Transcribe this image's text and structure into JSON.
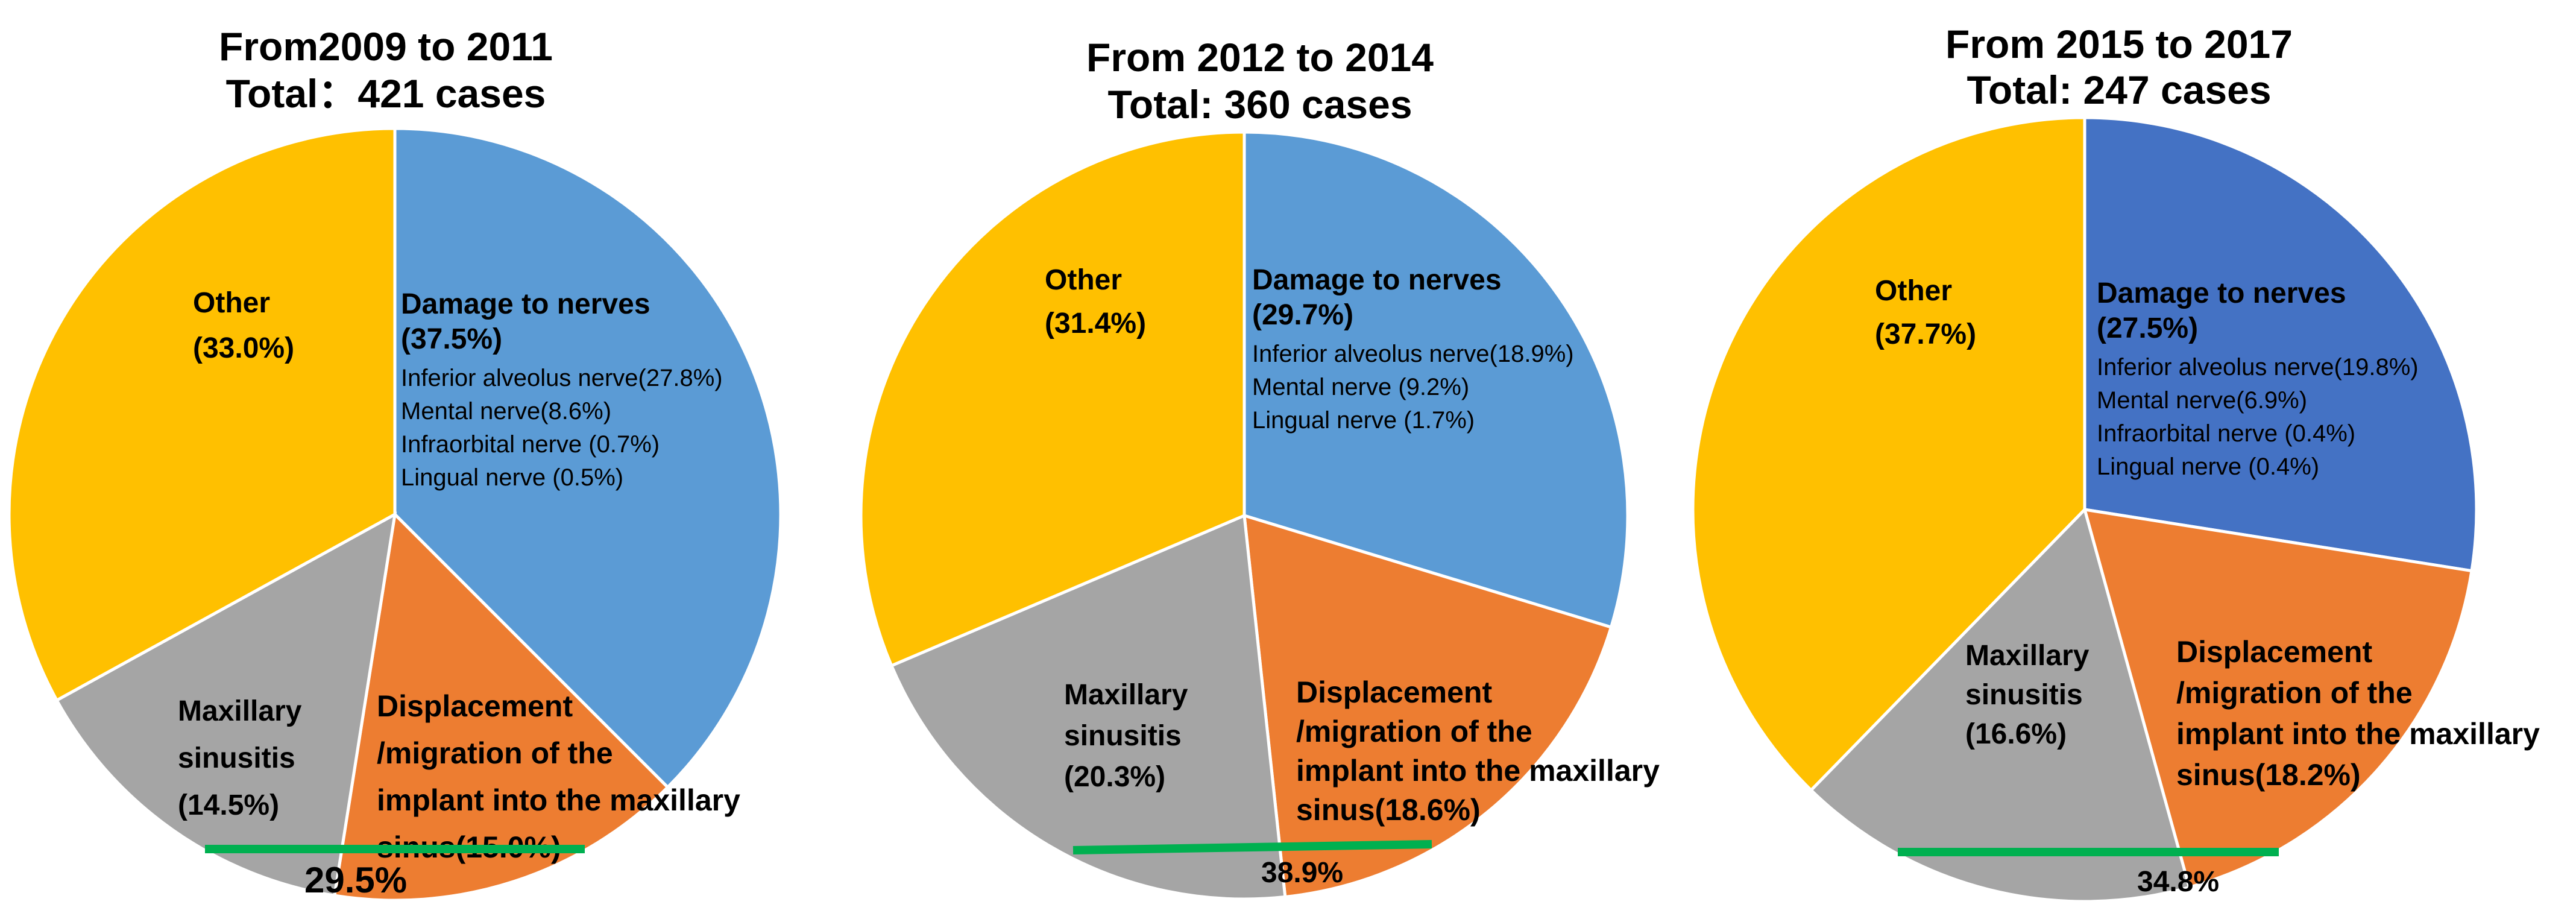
{
  "chart_data": [
    {
      "type": "pie",
      "title": "From2009 to 2011",
      "subtitle": "Total：421 cases",
      "slices": [
        {
          "name": "Damage to nerves",
          "value": 37.5,
          "value_label": "(37.5%)",
          "color": "#5B9BD5",
          "details": [
            "Inferior alveolus nerve(27.8%)",
            "Mental nerve(8.6%)",
            "Infraorbital nerve (0.7%)",
            "Lingual nerve (0.5%)"
          ]
        },
        {
          "name": "Displacement /migration of the implant into the maxillary sinus",
          "value": 15.0,
          "label_lines": [
            "Displacement",
            "/migration of the",
            "implant into the maxillary",
            "sinus(15.0%)"
          ],
          "color": "#ED7D31"
        },
        {
          "name": "Maxillary sinusitis",
          "value": 14.5,
          "label_lines": [
            "Maxillary",
            "sinusitis",
            "(14.5%)"
          ],
          "color": "#A5A5A5"
        },
        {
          "name": "Other",
          "value": 33.0,
          "label_lines": [
            "Other",
            "(33.0%)"
          ],
          "color": "#FFC000"
        }
      ],
      "combined_label": "29.5%",
      "combined_line_color": "#00B050"
    },
    {
      "type": "pie",
      "title": "From 2012 to 2014",
      "subtitle": "Total: 360 cases",
      "slices": [
        {
          "name": "Damage to nerves",
          "value": 29.7,
          "value_label": "(29.7%)",
          "color": "#5B9BD5",
          "details": [
            "Inferior alveolus nerve(18.9%)",
            "Mental nerve (9.2%)",
            "Lingual nerve (1.7%)"
          ]
        },
        {
          "name": "Displacement /migration of the implant into the maxillary sinus",
          "value": 18.6,
          "label_lines": [
            "Displacement",
            "/migration of the",
            "implant into the maxillary",
            "sinus(18.6%)"
          ],
          "color": "#ED7D31"
        },
        {
          "name": "Maxillary sinusitis",
          "value": 20.3,
          "label_lines": [
            "Maxillary",
            "sinusitis",
            "(20.3%)"
          ],
          "color": "#A5A5A5"
        },
        {
          "name": "Other",
          "value": 31.4,
          "label_lines": [
            "Other",
            "(31.4%)"
          ],
          "color": "#FFC000"
        }
      ],
      "combined_label": "38.9%",
      "combined_line_color": "#00B050"
    },
    {
      "type": "pie",
      "title": "From 2015 to 2017",
      "subtitle": "Total: 247 cases",
      "slices": [
        {
          "name": "Damage to nerves",
          "value": 27.5,
          "value_label": "(27.5%)",
          "color": "#4472C4",
          "details": [
            "Inferior alveolus nerve(19.8%)",
            "Mental nerve(6.9%)",
            "Infraorbital nerve (0.4%)",
            "Lingual nerve (0.4%)"
          ]
        },
        {
          "name": "Displacement /migration of the implant into the maxillary sinus",
          "value": 18.2,
          "label_lines": [
            "Displacement",
            "/migration of the",
            "implant into the maxillary",
            "sinus(18.2%)"
          ],
          "color": "#ED7D31"
        },
        {
          "name": "Maxillary sinusitis",
          "value": 16.6,
          "label_lines": [
            "Maxillary",
            "sinusitis",
            "(16.6%)"
          ],
          "color": "#A5A5A5"
        },
        {
          "name": "Other",
          "value": 37.7,
          "label_lines": [
            "Other",
            "(37.7%)"
          ],
          "color": "#FFC000"
        }
      ],
      "combined_label": "34.8%",
      "combined_line_color": "#00B050"
    }
  ]
}
